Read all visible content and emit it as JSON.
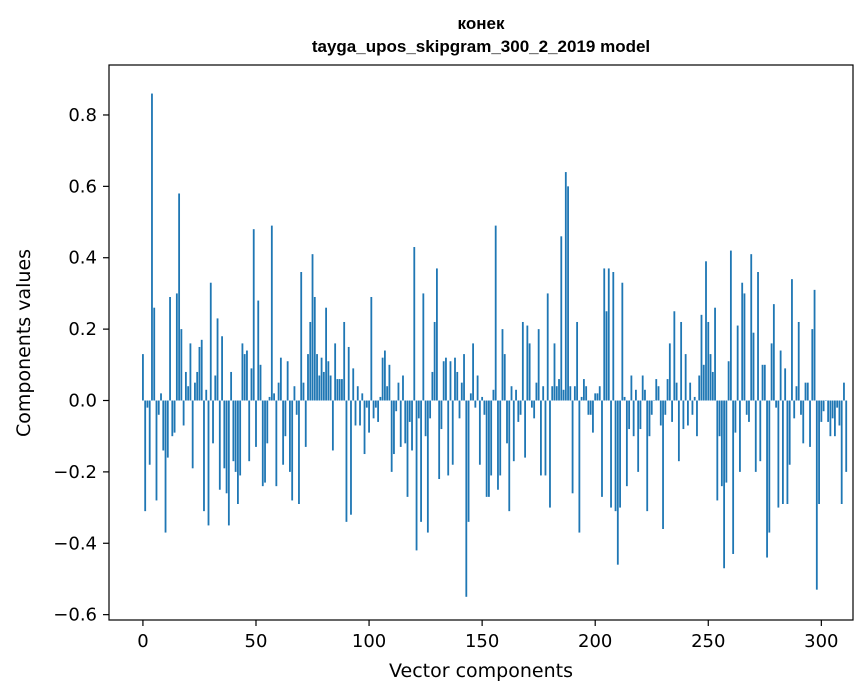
{
  "chart_data": {
    "type": "bar",
    "title_line1": "конек",
    "title_line2": "tayga_upos_skipgram_300_2_2019 model",
    "xlabel": "Vector components",
    "ylabel": "Components values",
    "xlim": [
      -15,
      314
    ],
    "ylim": [
      -0.615,
      0.94
    ],
    "xticks": [
      {
        "value": 0,
        "label": "0"
      },
      {
        "value": 50,
        "label": "50"
      },
      {
        "value": 100,
        "label": "100"
      },
      {
        "value": 150,
        "label": "150"
      },
      {
        "value": 200,
        "label": "200"
      },
      {
        "value": 250,
        "label": "250"
      },
      {
        "value": 300,
        "label": "300"
      }
    ],
    "yticks": [
      {
        "value": 0.8,
        "label": "0.8"
      },
      {
        "value": 0.6,
        "label": "0.6"
      },
      {
        "value": 0.4,
        "label": "0.4"
      },
      {
        "value": 0.2,
        "label": "0.2"
      },
      {
        "value": 0.0,
        "label": "0.0"
      },
      {
        "value": -0.2,
        "label": "−0.2"
      },
      {
        "value": -0.4,
        "label": "−0.4"
      },
      {
        "value": -0.6,
        "label": "−0.6"
      }
    ],
    "bar_color": "#1f77b4",
    "values": [
      0.13,
      -0.31,
      -0.02,
      -0.18,
      0.86,
      0.26,
      -0.28,
      -0.04,
      0.02,
      -0.14,
      -0.37,
      -0.16,
      0.29,
      -0.1,
      -0.09,
      0.3,
      0.58,
      0.2,
      -0.07,
      0.08,
      0.04,
      0.16,
      -0.19,
      0.05,
      0.08,
      0.15,
      0.17,
      -0.31,
      0.03,
      -0.35,
      0.33,
      -0.12,
      0.07,
      0.23,
      -0.25,
      0.18,
      -0.19,
      -0.26,
      -0.35,
      0.08,
      -0.17,
      -0.2,
      -0.29,
      -0.21,
      0.16,
      0.13,
      0.14,
      -0.17,
      0.09,
      0.48,
      -0.13,
      0.28,
      0.1,
      -0.24,
      -0.23,
      -0.12,
      0.01,
      0.49,
      0.02,
      -0.24,
      0.05,
      0.12,
      -0.18,
      -0.1,
      0.11,
      -0.2,
      -0.28,
      0.04,
      -0.04,
      -0.29,
      0.36,
      0.05,
      -0.13,
      0.13,
      0.22,
      0.41,
      0.29,
      0.13,
      0.07,
      0.12,
      0.08,
      0.26,
      0.11,
      0.07,
      -0.14,
      0.16,
      0.06,
      0.06,
      0.06,
      0.22,
      -0.34,
      0.15,
      -0.32,
      0.09,
      -0.07,
      0.04,
      -0.07,
      0.02,
      -0.15,
      -0.02,
      -0.09,
      0.29,
      -0.05,
      -0.02,
      -0.06,
      0.01,
      0.12,
      0.14,
      0.04,
      0.1,
      -0.2,
      -0.15,
      -0.03,
      0.05,
      -0.13,
      0.07,
      -0.12,
      -0.27,
      -0.06,
      -0.14,
      0.43,
      -0.42,
      -0.05,
      -0.34,
      0.3,
      -0.1,
      -0.37,
      -0.05,
      0.08,
      0.22,
      0.37,
      -0.22,
      -0.08,
      0.11,
      0.12,
      -0.21,
      0.11,
      -0.18,
      0.12,
      0.08,
      -0.05,
      0.05,
      0.13,
      -0.55,
      -0.34,
      0.02,
      0.16,
      -0.02,
      0.07,
      -0.18,
      0.01,
      -0.04,
      -0.27,
      -0.27,
      -0.21,
      0.03,
      0.49,
      -0.25,
      -0.21,
      0.2,
      0.13,
      -0.12,
      -0.31,
      0.04,
      -0.17,
      0.03,
      -0.06,
      -0.04,
      0.22,
      -0.16,
      0.21,
      0.16,
      -0.02,
      -0.05,
      0.05,
      0.2,
      -0.21,
      0.04,
      -0.21,
      0.3,
      -0.3,
      0.04,
      0.16,
      0.04,
      0.06,
      0.46,
      0.03,
      0.64,
      0.6,
      0.04,
      -0.26,
      0.04,
      0.22,
      -0.37,
      0.01,
      0.06,
      0.04,
      -0.04,
      -0.04,
      -0.09,
      0.02,
      0.02,
      0.04,
      -0.27,
      0.37,
      0.25,
      0.37,
      -0.3,
      0.36,
      -0.31,
      -0.46,
      -0.3,
      0.33,
      0.01,
      -0.24,
      -0.08,
      0.07,
      -0.1,
      0.03,
      -0.2,
      -0.08,
      0.07,
      0.03,
      -0.31,
      -0.1,
      -0.04,
      0.0,
      0.06,
      0.04,
      -0.07,
      -0.36,
      -0.04,
      0.06,
      0.16,
      -0.06,
      0.25,
      0.05,
      -0.17,
      0.22,
      -0.08,
      0.13,
      -0.07,
      0.05,
      -0.04,
      0.01,
      -0.1,
      0.07,
      0.24,
      0.1,
      0.39,
      0.22,
      0.13,
      0.08,
      0.26,
      -0.28,
      -0.1,
      -0.24,
      -0.47,
      -0.23,
      0.11,
      0.42,
      -0.43,
      -0.09,
      0.21,
      -0.2,
      0.33,
      0.3,
      -0.04,
      -0.06,
      0.41,
      0.19,
      -0.2,
      0.36,
      -0.17,
      0.1,
      0.1,
      -0.44,
      -0.37,
      0.16,
      0.27,
      -0.02,
      -0.3,
      0.14,
      -0.29,
      0.09,
      -0.29,
      -0.18,
      0.34,
      -0.05,
      0.04,
      0.22,
      -0.04,
      -0.12,
      0.05,
      0.05,
      -0.13,
      0.2,
      0.31,
      -0.53,
      -0.29,
      -0.06,
      -0.03,
      0.0,
      -0.06,
      -0.1,
      -0.05,
      -0.1,
      -0.02,
      -0.07,
      -0.29,
      0.05,
      -0.2
    ]
  }
}
